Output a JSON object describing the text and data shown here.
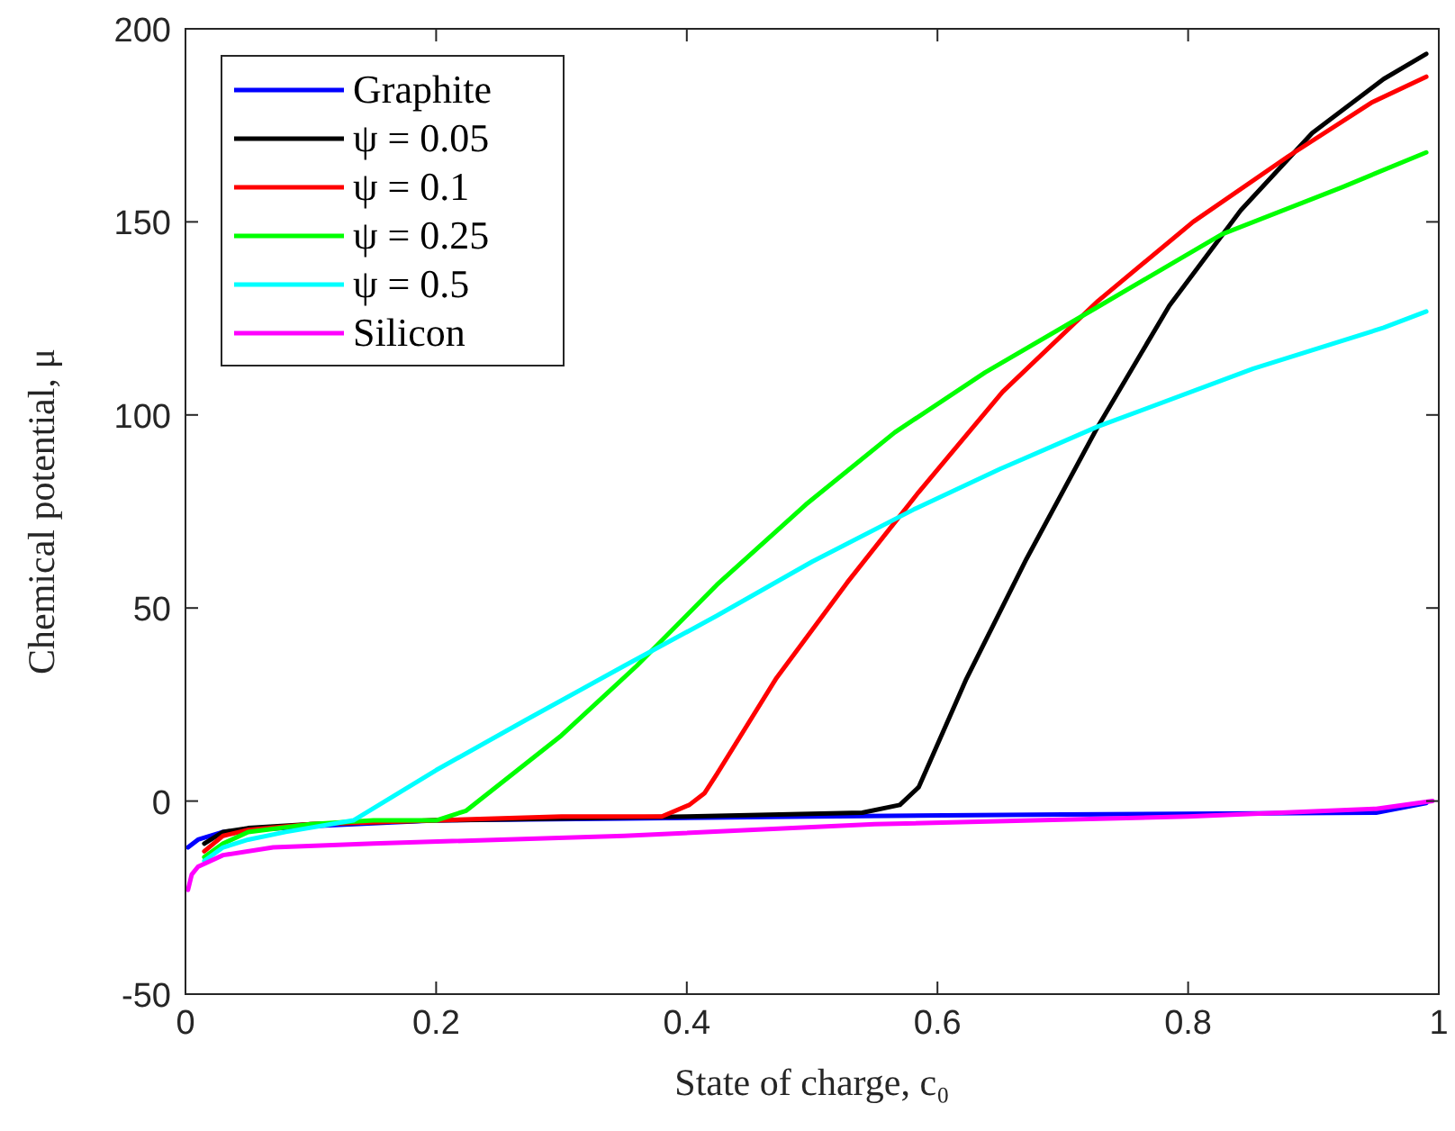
{
  "chart_data": {
    "type": "line",
    "xlabel": "State of charge, c₀",
    "ylabel": "Chemical potential, μ",
    "xlim": [
      0,
      1
    ],
    "ylim": [
      -50,
      200
    ],
    "xticks": [
      0,
      0.2,
      0.4,
      0.6,
      0.8,
      1
    ],
    "yticks": [
      -50,
      0,
      50,
      100,
      150,
      200
    ],
    "grid": false,
    "legend": "top left",
    "line_style": "solid",
    "series": [
      {
        "name": "Graphite",
        "color": "#0000ff",
        "x": [
          0.002,
          0.01,
          0.03,
          0.1,
          0.2,
          0.35,
          0.5,
          0.7,
          0.95,
          0.99
        ],
        "values": [
          -12,
          -10,
          -8,
          -6.5,
          -5,
          -4.5,
          -4,
          -3.5,
          -3,
          -0.5
        ]
      },
      {
        "name": "ψ = 0.05",
        "color": "#000000",
        "x": [
          0.015,
          0.03,
          0.05,
          0.1,
          0.2,
          0.4,
          0.54,
          0.57,
          0.585,
          0.623,
          0.671,
          0.728,
          0.785,
          0.842,
          0.899,
          0.956,
          0.99
        ],
        "values": [
          -11,
          -8,
          -7,
          -6,
          -5,
          -4,
          -3,
          -1,
          3.6,
          31.6,
          62.7,
          97,
          128.3,
          153,
          173,
          187,
          193.5
        ]
      },
      {
        "name": "ψ = 0.1",
        "color": "#ff0000",
        "x": [
          0.015,
          0.03,
          0.05,
          0.1,
          0.2,
          0.3,
          0.38,
          0.402,
          0.414,
          0.424,
          0.471,
          0.528,
          0.585,
          0.652,
          0.728,
          0.804,
          0.88,
          0.947,
          0.99
        ],
        "values": [
          -13,
          -9,
          -7.5,
          -6,
          -5,
          -4,
          -4,
          -1,
          2,
          7,
          31.6,
          56.6,
          80,
          106,
          129.5,
          150,
          167,
          181,
          187.6
        ]
      },
      {
        "name": "ψ = 0.25",
        "color": "#00ff00",
        "x": [
          0.015,
          0.03,
          0.05,
          0.1,
          0.15,
          0.2,
          0.224,
          0.3,
          0.36,
          0.424,
          0.495,
          0.566,
          0.638,
          0.728,
          0.827,
          0.923,
          0.99
        ],
        "values": [
          -14.5,
          -11,
          -8,
          -6,
          -5,
          -5,
          -2.5,
          17,
          35,
          56,
          76.8,
          95.5,
          111,
          128,
          146.8,
          159,
          168
        ]
      },
      {
        "name": "ψ = 0.5",
        "color": "#00ffff",
        "x": [
          0.015,
          0.03,
          0.05,
          0.08,
          0.134,
          0.2,
          0.271,
          0.35,
          0.424,
          0.5,
          0.581,
          0.65,
          0.728,
          0.852,
          0.956,
          0.99
        ],
        "values": [
          -15.5,
          -12,
          -10,
          -8,
          -5,
          8,
          20.9,
          35,
          48,
          62,
          75.5,
          86,
          97,
          112,
          122.6,
          126.8
        ]
      },
      {
        "name": "Silicon",
        "color": "#ff00ff",
        "x": [
          0.002,
          0.005,
          0.01,
          0.03,
          0.07,
          0.15,
          0.35,
          0.55,
          0.8,
          0.95,
          0.995
        ],
        "values": [
          -23,
          -19,
          -17,
          -14,
          -12,
          -11,
          -9,
          -6,
          -4,
          -2,
          0
        ]
      }
    ]
  }
}
